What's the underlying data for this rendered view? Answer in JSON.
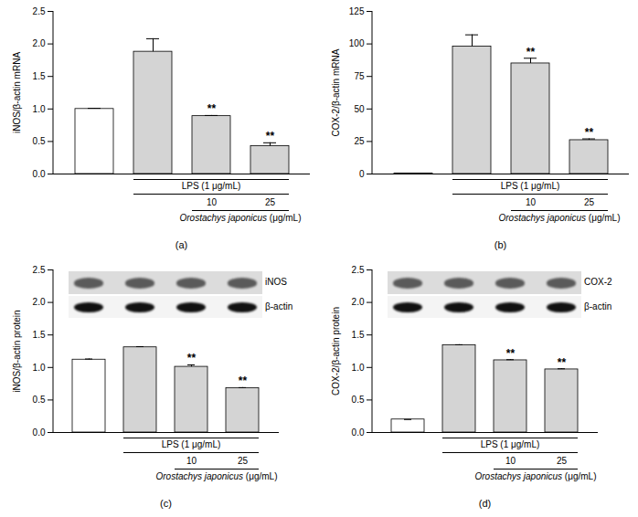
{
  "chart_data": [
    {
      "type": "bar",
      "caption": "(a)",
      "ylabel": "iNOS/β-actin mRNA",
      "categories": [
        null,
        null,
        "10",
        "25"
      ],
      "values": [
        1.0,
        1.88,
        0.89,
        0.43
      ],
      "errors": [
        0.01,
        0.2,
        0.01,
        0.05
      ],
      "significance": [
        null,
        null,
        "**",
        "**"
      ],
      "colors": [
        "#ffffff",
        "#d4d4d4",
        "#d4d4d4",
        "#d4d4d4"
      ],
      "ylim": [
        0,
        2.5
      ],
      "yticks": [
        {
          "value": 0,
          "label": "0.0"
        },
        {
          "value": 0.5,
          "label": "0.5"
        },
        {
          "value": 1,
          "label": "1.0"
        },
        {
          "value": 1.5,
          "label": "1.5"
        },
        {
          "value": 2,
          "label": "2.0"
        },
        {
          "value": 2.5,
          "label": "2.5"
        }
      ],
      "annotations": {
        "lps": "LPS (1 μg/mL)",
        "extract": "Orostachys japonicus (μg/mL)"
      }
    },
    {
      "type": "bar",
      "caption": "(b)",
      "ylabel": "COX-2/β-actin mRNA",
      "categories": [
        null,
        null,
        "10",
        "25"
      ],
      "values": [
        0.3,
        98,
        85,
        26
      ],
      "errors": [
        0,
        9,
        4,
        1
      ],
      "significance": [
        null,
        null,
        "**",
        "**"
      ],
      "colors": [
        "#ffffff",
        "#d4d4d4",
        "#d4d4d4",
        "#d4d4d4"
      ],
      "ylim": [
        0,
        125
      ],
      "yticks": [
        0,
        25,
        50,
        75,
        100,
        125
      ],
      "annotations": {
        "lps": "LPS (1 μg/mL)",
        "extract": "Orostachys japonicus (μg/mL)"
      }
    },
    {
      "type": "bar",
      "caption": "(c)",
      "ylabel": "iNOS/β-actin protein",
      "categories": [
        null,
        null,
        "10",
        "25"
      ],
      "values": [
        1.12,
        1.31,
        1.01,
        0.68
      ],
      "errors": [
        0.01,
        0.01,
        0.03,
        0.01
      ],
      "significance": [
        null,
        null,
        "**",
        "**"
      ],
      "colors": [
        "#ffffff",
        "#d4d4d4",
        "#d4d4d4",
        "#d4d4d4"
      ],
      "ylim": [
        0,
        2.5
      ],
      "yticks": [
        {
          "value": 0,
          "label": "0.0"
        },
        {
          "value": 0.5,
          "label": "0.5"
        },
        {
          "value": 1,
          "label": "1.0"
        },
        {
          "value": 1.5,
          "label": "1.5"
        },
        {
          "value": 2,
          "label": "2.0"
        },
        {
          "value": 2.5,
          "label": "2.5"
        }
      ],
      "blot_labels": [
        "iNOS",
        "β-actin"
      ],
      "annotations": {
        "lps": "LPS (1 μg/mL)",
        "extract": "Orostachys japonicus (μg/mL)"
      }
    },
    {
      "type": "bar",
      "caption": "(d)",
      "ylabel": "COX-2/β-actin protein",
      "categories": [
        null,
        null,
        "10",
        "25"
      ],
      "values": [
        0.2,
        1.34,
        1.11,
        0.97
      ],
      "errors": [
        0,
        0.01,
        0.01,
        0.01
      ],
      "significance": [
        null,
        null,
        "**",
        "**"
      ],
      "colors": [
        "#ffffff",
        "#d4d4d4",
        "#d4d4d4",
        "#d4d4d4"
      ],
      "ylim": [
        0,
        2.5
      ],
      "yticks": [
        {
          "value": 0,
          "label": "0.0"
        },
        {
          "value": 0.5,
          "label": "0.5"
        },
        {
          "value": 1,
          "label": "1.0"
        },
        {
          "value": 1.5,
          "label": "1.5"
        },
        {
          "value": 2,
          "label": "2.0"
        },
        {
          "value": 2.5,
          "label": "2.5"
        }
      ],
      "blot_labels": [
        "COX-2",
        "β-actin"
      ],
      "annotations": {
        "lps": "LPS (1 μg/mL)",
        "extract": "Orostachys japonicus (μg/mL)"
      }
    }
  ]
}
